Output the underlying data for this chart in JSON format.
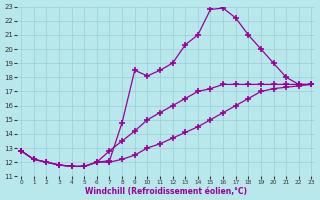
{
  "xlabel": "Windchill (Refroidissement éolien,°C)",
  "bg_color": "#b8e8ec",
  "grid_color": "#9ccdd4",
  "line_color": "#990099",
  "x_min": 0,
  "x_max": 23,
  "y_min": 11,
  "y_max": 23,
  "line1_x": [
    0,
    1,
    2,
    3,
    4,
    5,
    6,
    7,
    8,
    9,
    10,
    11,
    12,
    13,
    14,
    15,
    16,
    17,
    18,
    19,
    20,
    21,
    22,
    23
  ],
  "line1_y": [
    12.8,
    12.2,
    12.0,
    11.8,
    11.7,
    11.7,
    12.0,
    12.1,
    14.8,
    18.5,
    18.1,
    18.5,
    19.0,
    20.3,
    21.0,
    22.8,
    22.9,
    22.2,
    21.0,
    20.0,
    19.0,
    18.0,
    17.5,
    17.5
  ],
  "line2_x": [
    0,
    1,
    2,
    3,
    4,
    5,
    6,
    7,
    8,
    9,
    10,
    11,
    12,
    13,
    14,
    15,
    16,
    17,
    18,
    19,
    20,
    21,
    22,
    23
  ],
  "line2_y": [
    12.8,
    12.2,
    12.0,
    11.8,
    11.7,
    11.7,
    12.0,
    12.0,
    12.2,
    12.5,
    13.0,
    13.3,
    13.7,
    14.1,
    14.5,
    15.0,
    15.5,
    16.0,
    16.5,
    17.0,
    17.2,
    17.3,
    17.4,
    17.5
  ],
  "line3_x": [
    0,
    1,
    2,
    3,
    4,
    5,
    6,
    7,
    8,
    9,
    10,
    11,
    12,
    13,
    14,
    15,
    16,
    17,
    18,
    19,
    20,
    21,
    22,
    23
  ],
  "line3_y": [
    12.8,
    12.2,
    12.0,
    11.8,
    11.7,
    11.7,
    12.0,
    12.8,
    13.5,
    14.2,
    15.0,
    15.5,
    16.0,
    16.5,
    17.0,
    17.2,
    17.5,
    17.5,
    17.5,
    17.5,
    17.5,
    17.5,
    17.5,
    17.5
  ]
}
